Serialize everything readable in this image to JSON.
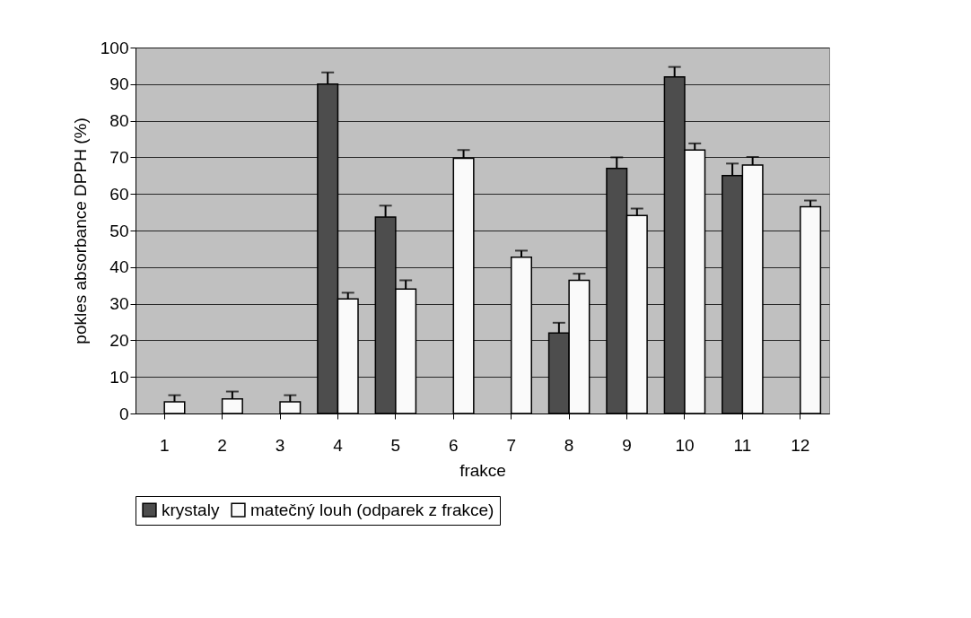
{
  "chart_data": {
    "type": "bar",
    "xlabel": "frakce",
    "ylabel": "pokles absorbance DPPH (%)",
    "categories": [
      "1",
      "2",
      "3",
      "4",
      "5",
      "6",
      "7",
      "8",
      "9",
      "10",
      "11",
      "12"
    ],
    "series": [
      {
        "name": "krystaly",
        "color": "#4d4d4d",
        "values": [
          null,
          null,
          null,
          90,
          53.7,
          null,
          null,
          22,
          67,
          92,
          65,
          null
        ],
        "errors": [
          null,
          null,
          null,
          [
            90,
            93.2
          ],
          [
            53.7,
            56.8
          ],
          null,
          null,
          [
            22,
            24.8
          ],
          [
            67,
            70
          ],
          [
            92,
            94.7
          ],
          [
            65,
            68.3
          ],
          null
        ]
      },
      {
        "name": "matečný louh (odparek z frakce)",
        "color": "#fafafa",
        "values": [
          3.2,
          4,
          3.2,
          31.3,
          34,
          69.7,
          42.7,
          36.4,
          54.1,
          72,
          67.9,
          56.5
        ],
        "errors": [
          [
            3.2,
            5
          ],
          [
            4,
            6
          ],
          [
            3.2,
            5
          ],
          [
            31.3,
            33
          ],
          [
            34,
            36.4
          ],
          [
            69.7,
            72
          ],
          [
            42.7,
            44.5
          ],
          [
            36.4,
            38.2
          ],
          [
            54.1,
            56
          ],
          [
            72,
            73.8
          ],
          [
            67.9,
            70.1
          ],
          [
            56.5,
            58.2
          ]
        ]
      }
    ],
    "ylim": [
      0,
      100
    ],
    "yticks": [
      0,
      10,
      20,
      30,
      40,
      50,
      60,
      70,
      80,
      90,
      100
    ],
    "grid": "y",
    "legend": "bottom"
  }
}
